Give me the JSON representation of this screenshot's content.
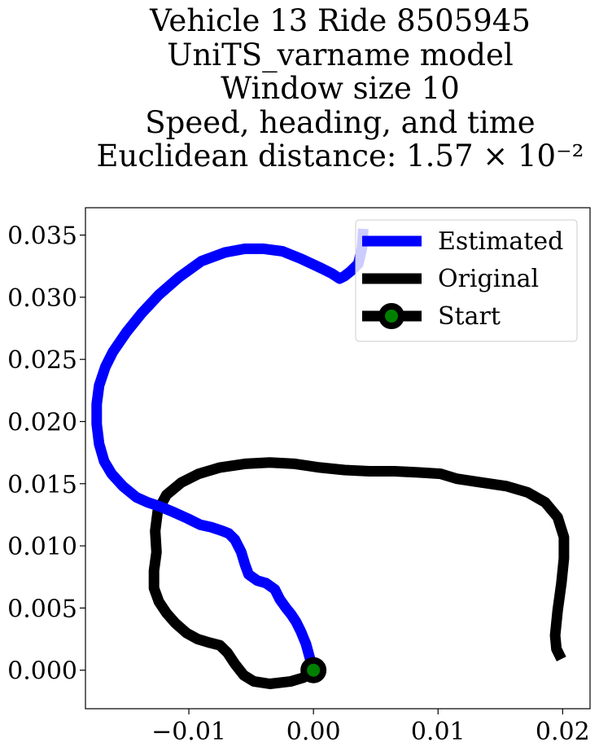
{
  "chart_data": {
    "type": "line",
    "title_lines": [
      "Vehicle 13 Ride 8505945",
      "UniTS_varname model",
      "Window size 10",
      "Speed, heading, and time",
      "Euclidean distance: 1.57 × 10⁻²"
    ],
    "xlabel": "",
    "ylabel": "",
    "xlim": [
      -0.0183,
      0.0222
    ],
    "ylim": [
      -0.0031,
      0.0372
    ],
    "xticks": [
      -0.01,
      0.0,
      0.01,
      0.02
    ],
    "xtick_labels": [
      "−0.01",
      "0.00",
      "0.01",
      "0.02"
    ],
    "yticks": [
      0.0,
      0.005,
      0.01,
      0.015,
      0.02,
      0.025,
      0.03,
      0.035
    ],
    "ytick_labels": [
      "0.000",
      "0.005",
      "0.010",
      "0.015",
      "0.020",
      "0.025",
      "0.030",
      "0.035"
    ],
    "grid": false,
    "legend_position": "top-right",
    "series": [
      {
        "name": "Estimated",
        "color": "#0000ff",
        "points": [
          [
            0.0,
            0.0
          ],
          [
            -0.0003,
            0.001
          ],
          [
            -0.0006,
            0.0021
          ],
          [
            -0.001,
            0.0031
          ],
          [
            -0.0014,
            0.0039
          ],
          [
            -0.0018,
            0.0045
          ],
          [
            -0.0022,
            0.005
          ],
          [
            -0.0027,
            0.0057
          ],
          [
            -0.0031,
            0.0065
          ],
          [
            -0.0038,
            0.007
          ],
          [
            -0.0045,
            0.0072
          ],
          [
            -0.0052,
            0.0077
          ],
          [
            -0.0055,
            0.0085
          ],
          [
            -0.0058,
            0.0095
          ],
          [
            -0.0063,
            0.0105
          ],
          [
            -0.0068,
            0.011
          ],
          [
            -0.0073,
            0.0112
          ],
          [
            -0.0082,
            0.0115
          ],
          [
            -0.0091,
            0.0117
          ],
          [
            -0.0101,
            0.0122
          ],
          [
            -0.0112,
            0.0127
          ],
          [
            -0.0124,
            0.0132
          ],
          [
            -0.0133,
            0.0135
          ],
          [
            -0.0142,
            0.0139
          ],
          [
            -0.0153,
            0.0148
          ],
          [
            -0.0162,
            0.0158
          ],
          [
            -0.0168,
            0.0168
          ],
          [
            -0.0172,
            0.0182
          ],
          [
            -0.0174,
            0.0198
          ],
          [
            -0.0174,
            0.0214
          ],
          [
            -0.0172,
            0.0229
          ],
          [
            -0.0167,
            0.0244
          ],
          [
            -0.0161,
            0.0256
          ],
          [
            -0.015,
            0.0272
          ],
          [
            -0.0138,
            0.0287
          ],
          [
            -0.0124,
            0.0302
          ],
          [
            -0.0108,
            0.0316
          ],
          [
            -0.009,
            0.0329
          ],
          [
            -0.0071,
            0.0336
          ],
          [
            -0.0055,
            0.0339
          ],
          [
            -0.004,
            0.0339
          ],
          [
            -0.0025,
            0.0337
          ],
          [
            -0.001,
            0.0331
          ],
          [
            0.0007,
            0.0323
          ],
          [
            0.0015,
            0.0319
          ],
          [
            0.0021,
            0.0315
          ],
          [
            0.0025,
            0.0317
          ],
          [
            0.003,
            0.0321
          ],
          [
            0.0036,
            0.0327
          ],
          [
            0.0039,
            0.034
          ],
          [
            0.004,
            0.0355
          ]
        ]
      },
      {
        "name": "Original",
        "color": "#000000",
        "points": [
          [
            0.0,
            0.0
          ],
          [
            -0.0008,
            -0.0006
          ],
          [
            -0.0018,
            -0.0009
          ],
          [
            -0.0035,
            -0.0011
          ],
          [
            -0.0048,
            -0.0009
          ],
          [
            -0.0056,
            -0.0004
          ],
          [
            -0.0063,
            0.0005
          ],
          [
            -0.0069,
            0.0014
          ],
          [
            -0.0075,
            0.002
          ],
          [
            -0.0083,
            0.0022
          ],
          [
            -0.0093,
            0.0025
          ],
          [
            -0.0102,
            0.003
          ],
          [
            -0.0111,
            0.0038
          ],
          [
            -0.0118,
            0.0046
          ],
          [
            -0.0124,
            0.0055
          ],
          [
            -0.0128,
            0.0066
          ],
          [
            -0.0128,
            0.008
          ],
          [
            -0.0126,
            0.0095
          ],
          [
            -0.0127,
            0.0112
          ],
          [
            -0.0125,
            0.0128
          ],
          [
            -0.0118,
            0.0141
          ],
          [
            -0.0106,
            0.0151
          ],
          [
            -0.0092,
            0.0158
          ],
          [
            -0.0075,
            0.0163
          ],
          [
            -0.0055,
            0.0166
          ],
          [
            -0.0035,
            0.0167
          ],
          [
            -0.0015,
            0.0166
          ],
          [
            0.0005,
            0.0163
          ],
          [
            0.0025,
            0.0161
          ],
          [
            0.0045,
            0.016
          ],
          [
            0.0065,
            0.016
          ],
          [
            0.0085,
            0.0159
          ],
          [
            0.0102,
            0.0158
          ],
          [
            0.0115,
            0.0154
          ],
          [
            0.0135,
            0.0151
          ],
          [
            0.0155,
            0.0148
          ],
          [
            0.0172,
            0.0143
          ],
          [
            0.0186,
            0.0135
          ],
          [
            0.0196,
            0.0123
          ],
          [
            0.0201,
            0.0107
          ],
          [
            0.0201,
            0.009
          ],
          [
            0.0199,
            0.007
          ],
          [
            0.0196,
            0.0048
          ],
          [
            0.0194,
            0.0028
          ],
          [
            0.0195,
            0.0017
          ],
          [
            0.0199,
            0.0009
          ]
        ]
      }
    ],
    "start_marker": {
      "name": "Start",
      "x": 0.0,
      "y": 0.0,
      "edge_color": "#000000",
      "face_color": "#008000"
    }
  }
}
